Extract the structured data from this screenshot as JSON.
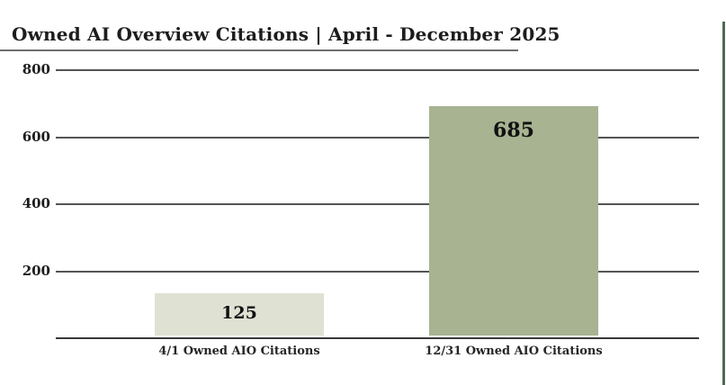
{
  "chart_data": {
    "type": "bar",
    "title": "Owned AI Overview Citations | April - December 2025",
    "categories": [
      "4/1 Owned AIO Citations",
      "12/31 Owned AIO Citations"
    ],
    "values": [
      125,
      685
    ],
    "bar_colors": [
      "#dfe2d3",
      "#a7b391"
    ],
    "xlabel": "",
    "ylabel": "",
    "ylim": [
      0,
      800
    ],
    "yticks": [
      800,
      600,
      400,
      200
    ],
    "grid": true,
    "legend_position": "none"
  },
  "colors": {
    "background": "#ffffff",
    "title_text": "#1d1d1d",
    "title_rule": "#6e6e6e",
    "gridline": "#545454",
    "axis_line": "#3a3a3a",
    "tick_text": "#1d1d1d",
    "value_text": "#111111",
    "category_text": "#262626",
    "right_edge": "#4d6b54"
  }
}
